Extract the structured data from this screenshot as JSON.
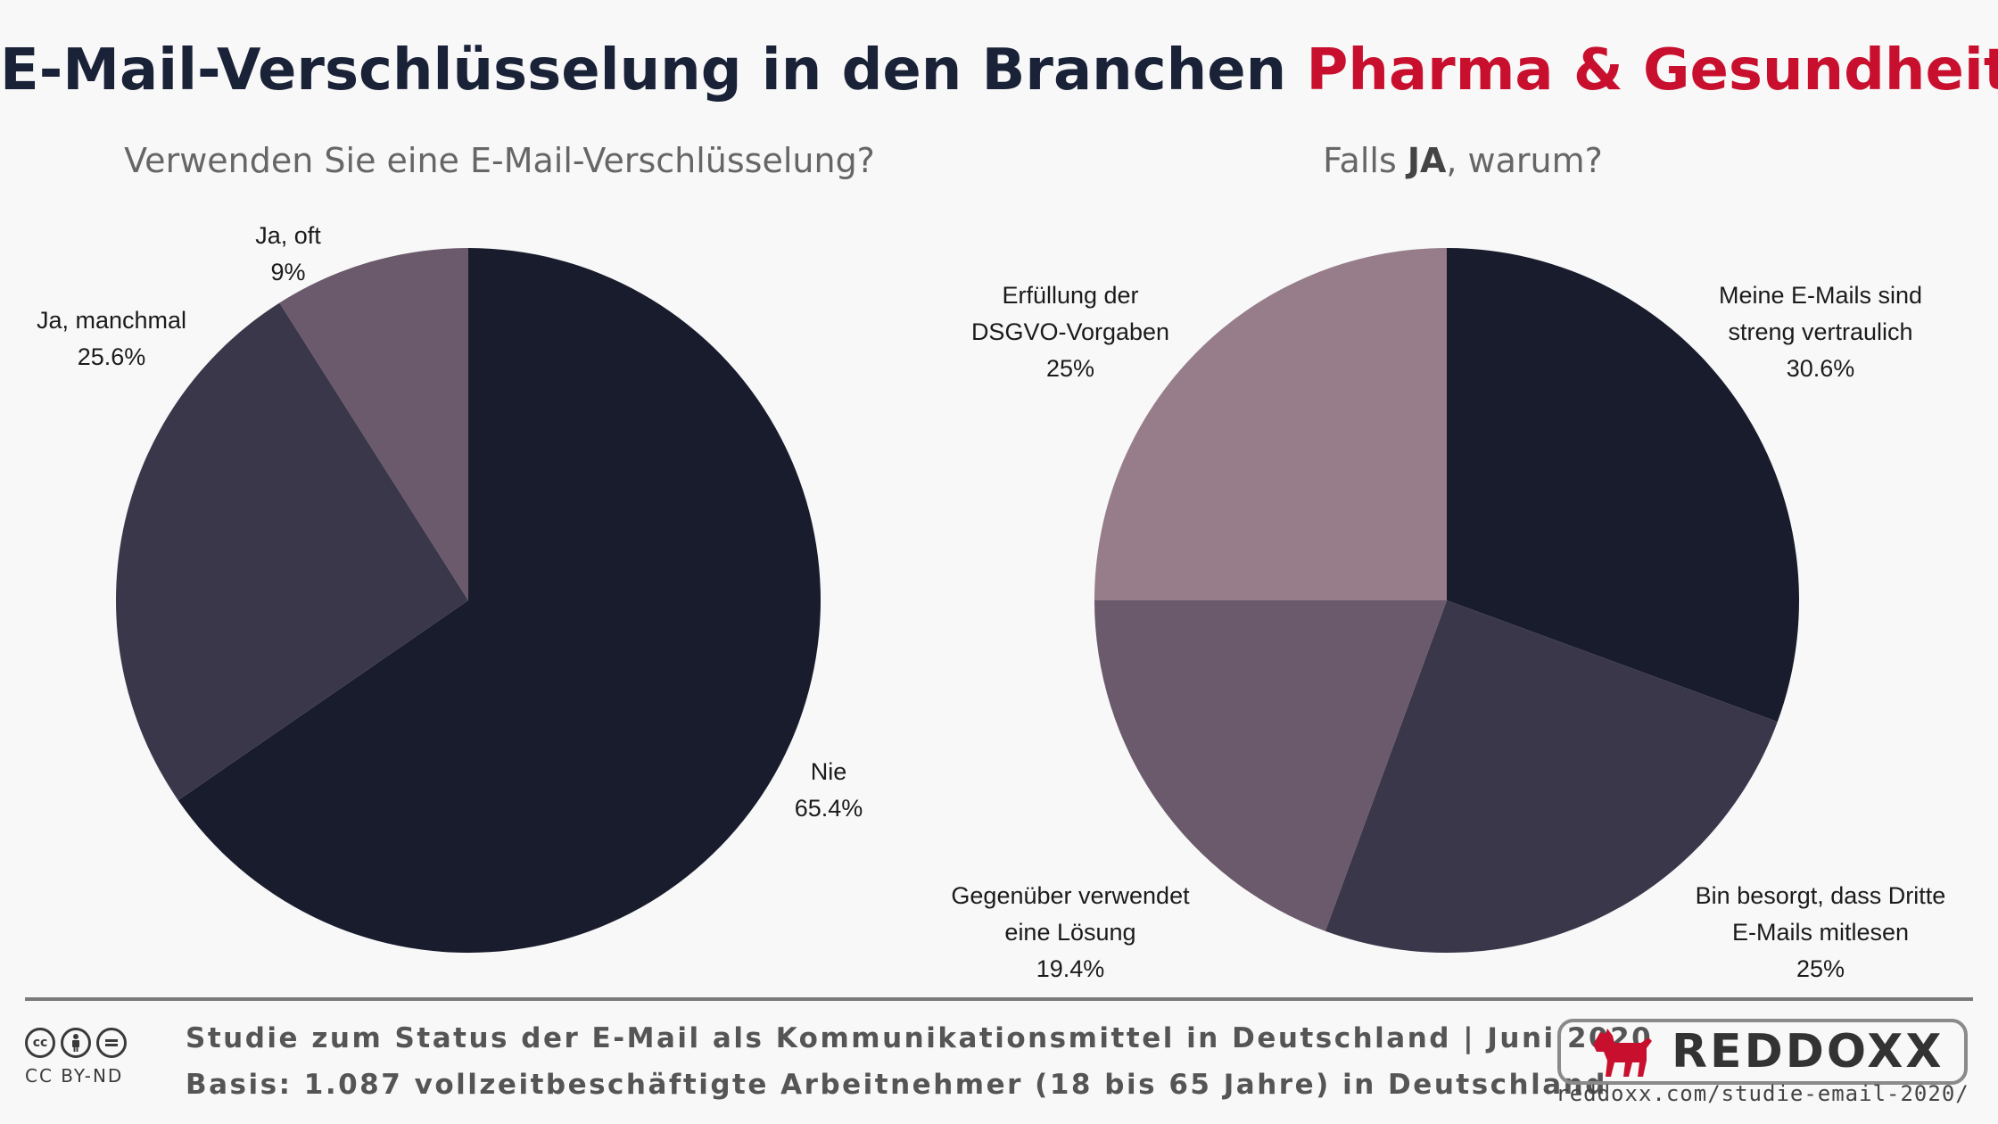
{
  "title": {
    "main": "E-Mail-Verschlüsselung in den Branchen",
    "accent": "Pharma & Gesundheit"
  },
  "colors": {
    "title": "#1a2238",
    "accent": "#c8102e",
    "background": "#f8f8f8"
  },
  "chart_data": [
    {
      "type": "pie",
      "title": "Verwenden Sie eine E-Mail-Verschlüsselung?",
      "slices": [
        {
          "label": "Nie",
          "value": 65.4,
          "value_label": "65.4%",
          "color": "#181c2d"
        },
        {
          "label": "Ja, manchmal",
          "value": 25.6,
          "value_label": "25.6%",
          "color": "#3b374b"
        },
        {
          "label": "Ja, oft",
          "value": 9,
          "value_label": "9%",
          "color": "#6a5a6b"
        }
      ]
    },
    {
      "type": "pie",
      "title_prefix": "Falls ",
      "title_bold": "JA",
      "title_suffix": ", warum?",
      "slices": [
        {
          "label": "Meine E-Mails sind streng vertraulich",
          "label_lines": [
            "Meine E-Mails sind",
            "streng vertraulich"
          ],
          "value": 30.6,
          "value_label": "30.6%",
          "color": "#181c2d"
        },
        {
          "label": "Bin besorgt, dass Dritte E-Mails mitlesen",
          "label_lines": [
            "Bin besorgt, dass Dritte",
            "E-Mails mitlesen"
          ],
          "value": 25,
          "value_label": "25%",
          "color": "#3b374b"
        },
        {
          "label": "Gegenüber verwendet eine Lösung",
          "label_lines": [
            "Gegenüber verwendet",
            "eine Lösung"
          ],
          "value": 19.4,
          "value_label": "19.4%",
          "color": "#6a5a6b"
        },
        {
          "label": "Erfüllung der DSGVO-Vorgaben",
          "label_lines": [
            "Erfüllung der",
            "DSGVO-Vorgaben"
          ],
          "value": 25,
          "value_label": "25%",
          "color": "#967d89"
        }
      ]
    }
  ],
  "footer": {
    "line1": "Studie zum Status der E-Mail als Kommunikationsmittel in Deutschland | Juni 2020",
    "line2": "Basis: 1.087 vollzeitbeschäftigte Arbeitnehmer (18 bis 65 Jahre) in Deutschland",
    "license": "CC BY-ND",
    "logo_text": "REDDOXX",
    "url": "reddoxx.com/studie-email-2020/"
  }
}
